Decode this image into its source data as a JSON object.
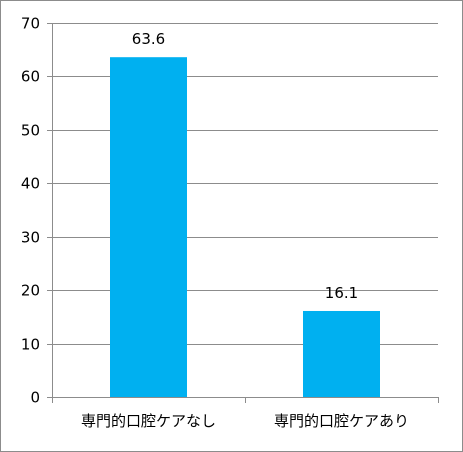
{
  "chart_data": {
    "type": "bar",
    "categories": [
      "専門的口腔ケアなし",
      "専門的口腔ケアあり"
    ],
    "values": [
      63.6,
      16.1
    ],
    "data_labels": [
      "63.6",
      "16.1"
    ],
    "ylim": [
      0,
      70
    ],
    "yticks": [
      0,
      10,
      20,
      30,
      40,
      50,
      60,
      70
    ],
    "grid": true,
    "legend": "none",
    "bar_color": "#00B0F0"
  }
}
